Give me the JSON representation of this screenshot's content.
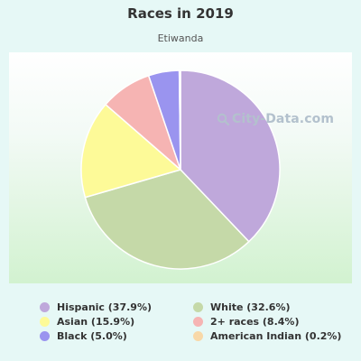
{
  "chart_data": {
    "type": "pie",
    "title": "Races in 2019",
    "subtitle": "Etiwanda",
    "slices": [
      {
        "label": "Hispanic",
        "value": 37.9,
        "color": "#bfa8db",
        "legend": "Hispanic (37.9%)"
      },
      {
        "label": "White",
        "value": 32.6,
        "color": "#c5d9a8",
        "legend": "White (32.6%)"
      },
      {
        "label": "Asian",
        "value": 15.9,
        "color": "#fdfa98",
        "legend": "Asian (15.9%)"
      },
      {
        "label": "2+ races",
        "value": 8.4,
        "color": "#f6b4b3",
        "legend": "2+ races (8.4%)"
      },
      {
        "label": "Black",
        "value": 5.0,
        "color": "#9a94ef",
        "legend": "Black (5.0%)"
      },
      {
        "label": "American Indian",
        "value": 0.2,
        "color": "#f8d8a8",
        "legend": "American Indian (0.2%)"
      }
    ],
    "legend_order": [
      0,
      1,
      2,
      3,
      4,
      5
    ],
    "legend_placement": "bottom"
  },
  "watermark": {
    "text": "City-Data.com",
    "icon": "search-icon"
  }
}
